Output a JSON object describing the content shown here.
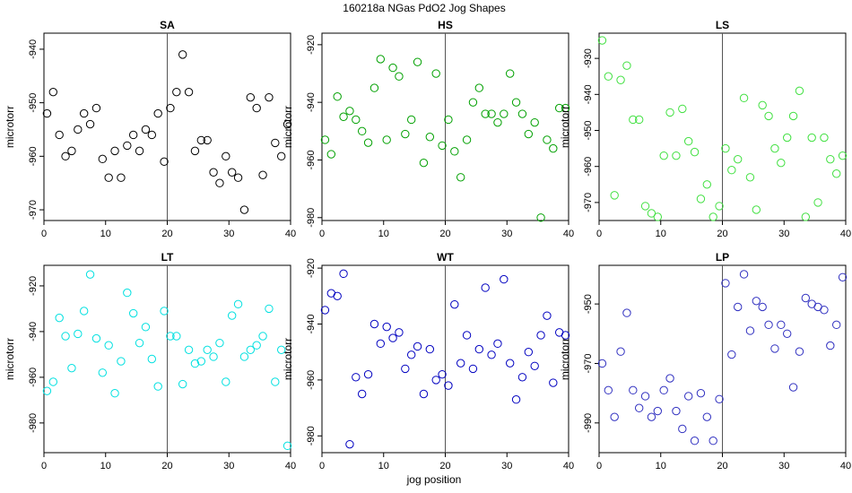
{
  "figure": {
    "title": "160218a   NGas PdO2 Jog Shapes",
    "xlabel": "jog position"
  },
  "chart_data": [
    {
      "type": "scatter",
      "title": "SA",
      "ylabel": "microtorr",
      "color": "#000000",
      "xlim": [
        0,
        40
      ],
      "ylim": [
        -972,
        -937
      ],
      "xticks": [
        0,
        10,
        20,
        30,
        40
      ],
      "yticks": [
        -940,
        -950,
        -960,
        -970
      ],
      "vline": 20,
      "x": [
        0.5,
        1.5,
        2.5,
        3.5,
        4.5,
        5.5,
        6.5,
        7.5,
        8.5,
        9.5,
        10.5,
        11.5,
        12.5,
        13.5,
        14.5,
        15.5,
        16.5,
        17.5,
        18.5,
        19.5,
        20.5,
        21.5,
        22.5,
        23.5,
        24.5,
        25.5,
        26.5,
        27.5,
        28.5,
        29.5,
        30.5,
        31.5,
        32.5,
        33.5,
        34.5,
        35.5,
        36.5,
        37.5,
        38.5,
        39.5
      ],
      "y": [
        -952,
        -948,
        -956,
        -960,
        -959,
        -955,
        -952,
        -954,
        -951,
        -960.5,
        -964,
        -959,
        -964,
        -958,
        -956,
        -959,
        -955,
        -956,
        -952,
        -961,
        -951,
        -948,
        -941,
        -948,
        -959,
        -957,
        -957,
        -963,
        -965,
        -960,
        -963,
        -964,
        -970,
        -949,
        -951,
        -963.5,
        -949,
        -957.5,
        -960,
        -954
      ]
    },
    {
      "type": "scatter",
      "title": "HS",
      "ylabel": "microtorr",
      "color": "#00a000",
      "xlim": [
        0,
        40
      ],
      "ylim": [
        -981,
        -916
      ],
      "xticks": [
        0,
        10,
        20,
        30,
        40
      ],
      "yticks": [
        -920,
        -940,
        -960,
        -980
      ],
      "vline": 20,
      "x": [
        0.5,
        1.5,
        2.5,
        3.5,
        4.5,
        5.5,
        6.5,
        7.5,
        8.5,
        9.5,
        10.5,
        11.5,
        12.5,
        13.5,
        14.5,
        15.5,
        16.5,
        17.5,
        18.5,
        19.5,
        20.5,
        21.5,
        22.5,
        23.5,
        24.5,
        25.5,
        26.5,
        27.5,
        28.5,
        29.5,
        30.5,
        31.5,
        32.5,
        33.5,
        34.5,
        35.5,
        36.5,
        37.5,
        38.5,
        39.5
      ],
      "y": [
        -953,
        -958,
        -938,
        -945,
        -943,
        -946,
        -950,
        -954,
        -935,
        -925,
        -953,
        -928,
        -931,
        -951,
        -946,
        -926,
        -961,
        -952,
        -930,
        -955,
        -946,
        -957,
        -966,
        -953,
        -940,
        -935,
        -944,
        -944,
        -947,
        -944,
        -930,
        -940,
        -944,
        -951,
        -947,
        -980,
        -953,
        -956,
        -942,
        -942
      ]
    },
    {
      "type": "scatter",
      "title": "LS",
      "ylabel": "microtorr",
      "color": "#40e040",
      "xlim": [
        0,
        40
      ],
      "ylim": [
        -975,
        -923
      ],
      "xticks": [
        0,
        10,
        20,
        30,
        40
      ],
      "yticks": [
        -930,
        -940,
        -950,
        -960,
        -970
      ],
      "vline": 20,
      "x": [
        0.5,
        1.5,
        2.5,
        3.5,
        4.5,
        5.5,
        6.5,
        7.5,
        8.5,
        9.5,
        10.5,
        11.5,
        12.5,
        13.5,
        14.5,
        15.5,
        16.5,
        17.5,
        18.5,
        19.5,
        20.5,
        21.5,
        22.5,
        23.5,
        24.5,
        25.5,
        26.5,
        27.5,
        28.5,
        29.5,
        30.5,
        31.5,
        32.5,
        33.5,
        34.5,
        35.5,
        36.5,
        37.5,
        38.5,
        39.5
      ],
      "y": [
        -925,
        -935,
        -968,
        -936,
        -932,
        -947,
        -947,
        -971,
        -973,
        -974,
        -957,
        -945,
        -957,
        -944,
        -953,
        -956,
        -969,
        -965,
        -974,
        -971,
        -955,
        -961,
        -958,
        -941,
        -963,
        -972,
        -943,
        -946,
        -955,
        -959,
        -952,
        -946,
        -939,
        -974,
        -952,
        -970,
        -952,
        -958,
        -962,
        -957
      ]
    },
    {
      "type": "scatter",
      "title": "LT",
      "ylabel": "microtorr",
      "color": "#00e0e0",
      "xlim": [
        0,
        40
      ],
      "ylim": [
        -993,
        -911
      ],
      "xticks": [
        0,
        10,
        20,
        30,
        40
      ],
      "yticks": [
        -920,
        -940,
        -960,
        -980
      ],
      "vline": 20,
      "x": [
        0.5,
        1.5,
        2.5,
        3.5,
        4.5,
        5.5,
        6.5,
        7.5,
        8.5,
        9.5,
        10.5,
        11.5,
        12.5,
        13.5,
        14.5,
        15.5,
        16.5,
        17.5,
        18.5,
        19.5,
        20.5,
        21.5,
        22.5,
        23.5,
        24.5,
        25.5,
        26.5,
        27.5,
        28.5,
        29.5,
        30.5,
        31.5,
        32.5,
        33.5,
        34.5,
        35.5,
        36.5,
        37.5,
        38.5,
        39.5
      ],
      "y": [
        -966,
        -962,
        -934,
        -942,
        -956,
        -941,
        -931,
        -915,
        -943,
        -958,
        -946,
        -967,
        -953,
        -923,
        -932,
        -945,
        -938,
        -952,
        -964,
        -931,
        -942,
        -942,
        -963,
        -948,
        -954,
        -953,
        -948,
        -951,
        -945,
        -962,
        -933,
        -928,
        -951,
        -948,
        -946,
        -942,
        -930,
        -962,
        -948,
        -990
      ]
    },
    {
      "type": "scatter",
      "title": "WT",
      "ylabel": "microtorr",
      "color": "#0000c0",
      "xlim": [
        0,
        40
      ],
      "ylim": [
        -986,
        -919
      ],
      "xticks": [
        0,
        10,
        20,
        30,
        40
      ],
      "yticks": [
        -920,
        -940,
        -960,
        -980
      ],
      "vline": 20,
      "x": [
        0.5,
        1.5,
        2.5,
        3.5,
        4.5,
        5.5,
        6.5,
        7.5,
        8.5,
        9.5,
        10.5,
        11.5,
        12.5,
        13.5,
        14.5,
        15.5,
        16.5,
        17.5,
        18.5,
        19.5,
        20.5,
        21.5,
        22.5,
        23.5,
        24.5,
        25.5,
        26.5,
        27.5,
        28.5,
        29.5,
        30.5,
        31.5,
        32.5,
        33.5,
        34.5,
        35.5,
        36.5,
        37.5,
        38.5,
        39.5
      ],
      "y": [
        -935,
        -929,
        -930,
        -922,
        -983,
        -959,
        -965,
        -958,
        -940,
        -947,
        -941,
        -945,
        -943,
        -956,
        -951,
        -948,
        -965,
        -949,
        -960,
        -958,
        -962,
        -933,
        -954,
        -944,
        -956,
        -949,
        -927,
        -951,
        -947,
        -924,
        -954,
        -967,
        -959,
        -950,
        -955,
        -944,
        -937,
        -961,
        -943,
        -944
      ]
    },
    {
      "type": "scatter",
      "title": "LP",
      "ylabel": "microtorr",
      "color": "#3030c0",
      "xlim": [
        0,
        40
      ],
      "ylim": [
        -1000,
        -937
      ],
      "xticks": [
        0,
        10,
        20,
        30,
        40
      ],
      "yticks": [
        -950,
        -970,
        -990
      ],
      "vline": 20,
      "x": [
        0.5,
        1.5,
        2.5,
        3.5,
        4.5,
        5.5,
        6.5,
        7.5,
        8.5,
        9.5,
        10.5,
        11.5,
        12.5,
        13.5,
        14.5,
        15.5,
        16.5,
        17.5,
        18.5,
        19.5,
        20.5,
        21.5,
        22.5,
        23.5,
        24.5,
        25.5,
        26.5,
        27.5,
        28.5,
        29.5,
        30.5,
        31.5,
        32.5,
        33.5,
        34.5,
        35.5,
        36.5,
        37.5,
        38.5,
        39.5
      ],
      "y": [
        -970,
        -979,
        -988,
        -966,
        -953,
        -979,
        -985,
        -981,
        -988,
        -986,
        -979,
        -975,
        -986,
        -992,
        -981,
        -996,
        -980,
        -988,
        -996,
        -982,
        -943,
        -967,
        -951,
        -940,
        -959,
        -949,
        -951,
        -957,
        -965,
        -957,
        -960,
        -978,
        -966,
        -948,
        -950,
        -951,
        -952,
        -964,
        -957,
        -941
      ]
    }
  ]
}
